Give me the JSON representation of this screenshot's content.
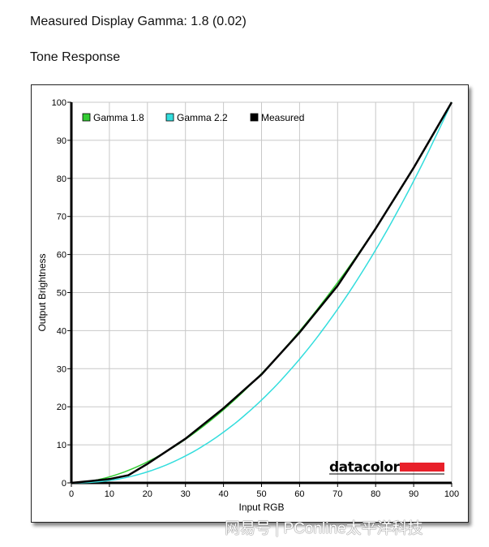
{
  "header": {
    "gamma_line": "Measured Display Gamma: 1.8 (0.02)",
    "section_title": "Tone Response"
  },
  "watermark": "网易号 | PConline太平洋科技",
  "logo": {
    "text": "datacolor",
    "color": "#e8202a"
  },
  "chart_data": {
    "type": "line",
    "title": "Tone Response",
    "xlabel": "Input RGB",
    "ylabel": "Output Brightness",
    "xlim": [
      0,
      100
    ],
    "ylim": [
      0,
      100
    ],
    "xticks": [
      0,
      10,
      20,
      30,
      40,
      50,
      60,
      70,
      80,
      90,
      100
    ],
    "yticks": [
      0,
      10,
      20,
      30,
      40,
      50,
      60,
      70,
      80,
      90,
      100
    ],
    "grid": true,
    "legend_position": "top-left",
    "series": [
      {
        "name": "Gamma 1.8",
        "color": "#33cc33",
        "gamma": 1.8
      },
      {
        "name": "Gamma 2.2",
        "color": "#33dddd",
        "gamma": 2.2
      },
      {
        "name": "Measured",
        "color": "#000000",
        "x": [
          0,
          5,
          10,
          15,
          20,
          25,
          30,
          40,
          50,
          60,
          70,
          80,
          90,
          100
        ],
        "y": [
          0,
          0.5,
          1.0,
          2.0,
          5.0,
          8.3,
          11.6,
          19.6,
          28.5,
          39.5,
          51.8,
          66.8,
          82.8,
          100
        ]
      }
    ]
  }
}
